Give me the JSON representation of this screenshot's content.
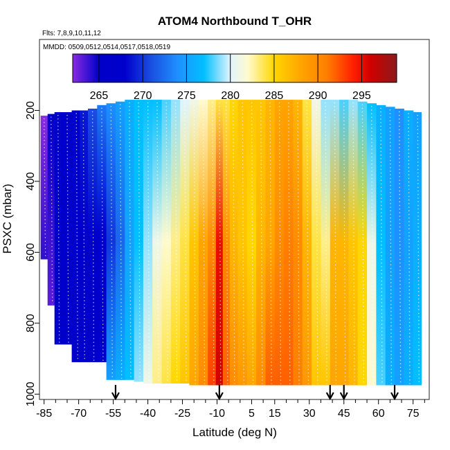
{
  "chart_data": {
    "type": "heatmap",
    "title": "ATOM4 Northbound T_OHR",
    "note_flights": "Flts: 7,8,9,10,11,12",
    "note_dates": "MMDD: 0509,0512,0514,0517,0518,0519",
    "xlabel": "Latitude (deg N)",
    "ylabel": "PSXC (mbar)",
    "xlim": [
      -87,
      82
    ],
    "ylim": [
      1015,
      0
    ],
    "x_ticks": [
      -85,
      -70,
      -55,
      -40,
      -25,
      -10,
      5,
      15,
      30,
      45,
      60,
      75
    ],
    "y_ticks": [
      200,
      400,
      600,
      800,
      1000
    ],
    "colorbar": {
      "min": 262,
      "max": 299,
      "ticks": [
        265,
        270,
        275,
        280,
        285,
        290,
        295
      ],
      "stops": [
        {
          "v": 262,
          "c": "#8a2be2"
        },
        {
          "v": 265,
          "c": "#0000c8"
        },
        {
          "v": 268,
          "c": "#0000cd"
        },
        {
          "v": 271,
          "c": "#1a4fe0"
        },
        {
          "v": 274,
          "c": "#1e90ff"
        },
        {
          "v": 277,
          "c": "#00bfff"
        },
        {
          "v": 280,
          "c": "#e0f4ff"
        },
        {
          "v": 282,
          "c": "#fffacd"
        },
        {
          "v": 285,
          "c": "#ffd700"
        },
        {
          "v": 288,
          "c": "#ffa500"
        },
        {
          "v": 291,
          "c": "#ff7f00"
        },
        {
          "v": 294,
          "c": "#ff2000"
        },
        {
          "v": 296,
          "c": "#d00000"
        },
        {
          "v": 299,
          "c": "#8b1a1a"
        }
      ]
    },
    "profiles": [
      {
        "lat": -85,
        "top": 215,
        "bottom": 620,
        "values": [
          262,
          263,
          264
        ]
      },
      {
        "lat": -82,
        "top": 210,
        "bottom": 750,
        "values": [
          265,
          264,
          263
        ]
      },
      {
        "lat": -79,
        "top": 205,
        "bottom": 860,
        "values": [
          266,
          266,
          265
        ]
      },
      {
        "lat": -75,
        "top": 205,
        "bottom": 860,
        "values": [
          266,
          266,
          266
        ]
      },
      {
        "lat": -71,
        "top": 200,
        "bottom": 910,
        "values": [
          267,
          267,
          267
        ]
      },
      {
        "lat": -68,
        "top": 200,
        "bottom": 910,
        "values": [
          269,
          267,
          267
        ]
      },
      {
        "lat": -64,
        "top": 195,
        "bottom": 910,
        "values": [
          271,
          267,
          267
        ]
      },
      {
        "lat": -60,
        "top": 185,
        "bottom": 910,
        "values": [
          273,
          268,
          268
        ]
      },
      {
        "lat": -56,
        "top": 180,
        "bottom": 960,
        "values": [
          274,
          270,
          275
        ]
      },
      {
        "lat": -52,
        "top": 175,
        "bottom": 960,
        "values": [
          275,
          272,
          276
        ]
      },
      {
        "lat": -48,
        "top": 170,
        "bottom": 960,
        "values": [
          276,
          275,
          277
        ]
      },
      {
        "lat": -44,
        "top": 170,
        "bottom": 965,
        "values": [
          277,
          277,
          279
        ]
      },
      {
        "lat": -40,
        "top": 170,
        "bottom": 970,
        "values": [
          277,
          279,
          281
        ]
      },
      {
        "lat": -36,
        "top": 170,
        "bottom": 970,
        "values": [
          277,
          281,
          283
        ]
      },
      {
        "lat": -32,
        "top": 170,
        "bottom": 970,
        "values": [
          278,
          282,
          284
        ]
      },
      {
        "lat": -28,
        "top": 170,
        "bottom": 970,
        "values": [
          279,
          283,
          285
        ]
      },
      {
        "lat": -24,
        "top": 170,
        "bottom": 970,
        "values": [
          280,
          284,
          286
        ]
      },
      {
        "lat": -20,
        "top": 170,
        "bottom": 975,
        "values": [
          281,
          286,
          288
        ]
      },
      {
        "lat": -16,
        "top": 170,
        "bottom": 975,
        "values": [
          282,
          288,
          290
        ]
      },
      {
        "lat": -12,
        "top": 170,
        "bottom": 975,
        "values": [
          283,
          290,
          293
        ]
      },
      {
        "lat": -9,
        "top": 170,
        "bottom": 975,
        "values": [
          284,
          295,
          296
        ]
      },
      {
        "lat": -6,
        "top": 170,
        "bottom": 975,
        "values": [
          284,
          290,
          292
        ]
      },
      {
        "lat": -3,
        "top": 170,
        "bottom": 975,
        "values": [
          285,
          287,
          290
        ]
      },
      {
        "lat": 1,
        "top": 170,
        "bottom": 975,
        "values": [
          286,
          286,
          289
        ]
      },
      {
        "lat": 5,
        "top": 170,
        "bottom": 975,
        "values": [
          286,
          285,
          288
        ]
      },
      {
        "lat": 9,
        "top": 170,
        "bottom": 975,
        "values": [
          286,
          287,
          290
        ]
      },
      {
        "lat": 13,
        "top": 170,
        "bottom": 975,
        "values": [
          287,
          288,
          292
        ]
      },
      {
        "lat": 17,
        "top": 170,
        "bottom": 975,
        "values": [
          288,
          290,
          292
        ]
      },
      {
        "lat": 21,
        "top": 170,
        "bottom": 975,
        "values": [
          288,
          291,
          292
        ]
      },
      {
        "lat": 25,
        "top": 170,
        "bottom": 975,
        "values": [
          287,
          290,
          291
        ]
      },
      {
        "lat": 29,
        "top": 170,
        "bottom": 975,
        "values": [
          284,
          287,
          289
        ]
      },
      {
        "lat": 33,
        "top": 170,
        "bottom": 975,
        "values": [
          281,
          284,
          286
        ]
      },
      {
        "lat": 37,
        "top": 170,
        "bottom": 975,
        "values": [
          279,
          283,
          286
        ]
      },
      {
        "lat": 41,
        "top": 170,
        "bottom": 975,
        "values": [
          279,
          287,
          288
        ]
      },
      {
        "lat": 45,
        "top": 170,
        "bottom": 975,
        "values": [
          278,
          287,
          288
        ]
      },
      {
        "lat": 49,
        "top": 170,
        "bottom": 975,
        "values": [
          279,
          286,
          287
        ]
      },
      {
        "lat": 53,
        "top": 175,
        "bottom": 975,
        "values": [
          278,
          285,
          285
        ]
      },
      {
        "lat": 57,
        "top": 180,
        "bottom": 975,
        "values": [
          277,
          281,
          282
        ]
      },
      {
        "lat": 61,
        "top": 185,
        "bottom": 975,
        "values": [
          276,
          277,
          278
        ]
      },
      {
        "lat": 65,
        "top": 190,
        "bottom": 975,
        "values": [
          275,
          275,
          276
        ]
      },
      {
        "lat": 69,
        "top": 195,
        "bottom": 975,
        "values": [
          274,
          274,
          275
        ]
      },
      {
        "lat": 73,
        "top": 200,
        "bottom": 975,
        "values": [
          276,
          275,
          276
        ]
      },
      {
        "lat": 77,
        "top": 205,
        "bottom": 975,
        "values": [
          275,
          276,
          277
        ]
      }
    ],
    "arrows_lat": [
      -54,
      -9,
      39,
      45,
      67
    ]
  }
}
